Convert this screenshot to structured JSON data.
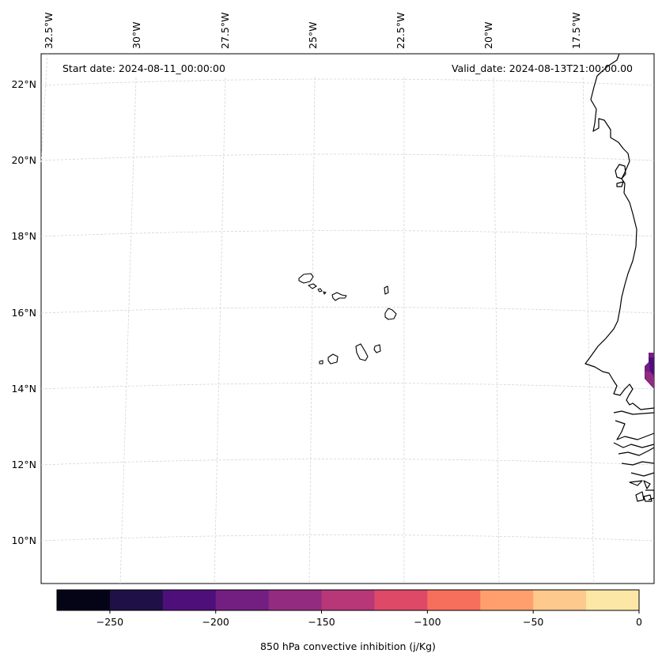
{
  "map": {
    "start_date_label": "Start date: 2024-08-11_00:00:00",
    "valid_date_label": "Valid_date: 2024-08-13T21:00:00.00",
    "longitude_labels": [
      "32.5°W",
      "30°W",
      "27.5°W",
      "25°W",
      "22.5°W",
      "20°W",
      "17.5°W"
    ],
    "latitude_labels": [
      "22°N",
      "20°N",
      "18°N",
      "16°N",
      "14°N",
      "12°N",
      "10°N"
    ]
  },
  "colorbar": {
    "label": "850 hPa convective inhibition (j/Kg)",
    "range": [
      -275,
      0
    ],
    "tick_labels": [
      "−250",
      "−200",
      "−150",
      "−100",
      "−50",
      "0"
    ],
    "colors": [
      "#050417",
      "#1f1147",
      "#4f0f7b",
      "#721f81",
      "#932b80",
      "#b73779",
      "#de4968",
      "#f66e5c",
      "#fe9f6d",
      "#fec98d",
      "#fde7a6"
    ]
  }
}
